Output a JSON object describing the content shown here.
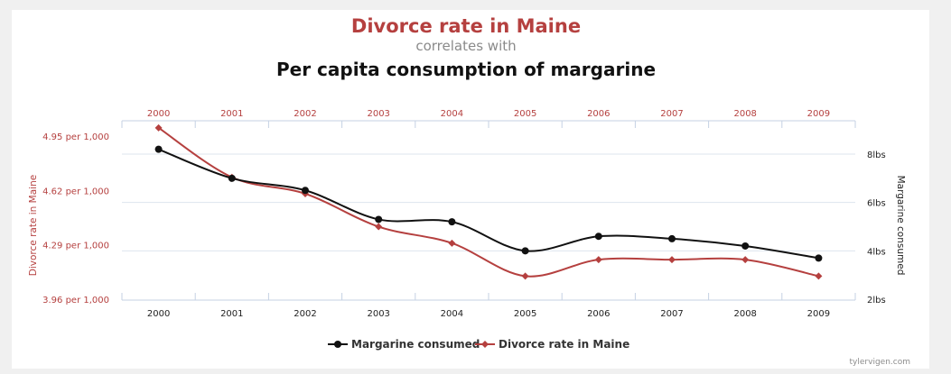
{
  "header": {
    "title": "Divorce rate in Maine",
    "subtitle": "correlates with",
    "main_title": "Per capita consumption of margarine"
  },
  "credit": "tylervigen.com",
  "colors": {
    "divorce": "#b5403f",
    "margarine": "#111111",
    "grid": "#dde4ee",
    "axis": "#c5d1e3"
  },
  "chart_data": {
    "type": "line",
    "x": [
      "2000",
      "2001",
      "2002",
      "2003",
      "2004",
      "2005",
      "2006",
      "2007",
      "2008",
      "2009"
    ],
    "series": [
      {
        "name": "Margarine consumed",
        "axis": "right",
        "color": "#111111",
        "marker": "circle",
        "values": [
          8.2,
          7.0,
          6.5,
          5.3,
          5.2,
          4.0,
          4.6,
          4.5,
          4.2,
          3.7
        ]
      },
      {
        "name": "Divorce rate in Maine",
        "axis": "left",
        "color": "#b5403f",
        "marker": "diamond",
        "values": [
          5.0,
          4.7,
          4.6,
          4.4,
          4.3,
          4.1,
          4.2,
          4.2,
          4.2,
          4.1
        ]
      }
    ],
    "left_axis": {
      "label": "Divorce rate in Maine",
      "range": [
        3.96,
        4.95
      ],
      "ticks": [
        {
          "value": 4.95,
          "label": "4.95 per 1,000"
        },
        {
          "value": 4.62,
          "label": "4.62 per 1,000"
        },
        {
          "value": 4.29,
          "label": "4.29 per 1,000"
        },
        {
          "value": 3.96,
          "label": "3.96 per 1,000"
        }
      ]
    },
    "right_axis": {
      "label": "Margarine consumed",
      "range": [
        2,
        8
      ],
      "ticks": [
        {
          "value": 8,
          "label": "8lbs"
        },
        {
          "value": 6,
          "label": "6lbs"
        },
        {
          "value": 4,
          "label": "4lbs"
        },
        {
          "value": 2,
          "label": "2lbs"
        }
      ]
    },
    "legend": {
      "position": "bottom-center",
      "entries": [
        "Margarine consumed",
        "Divorce rate in Maine"
      ]
    },
    "grid": true
  }
}
